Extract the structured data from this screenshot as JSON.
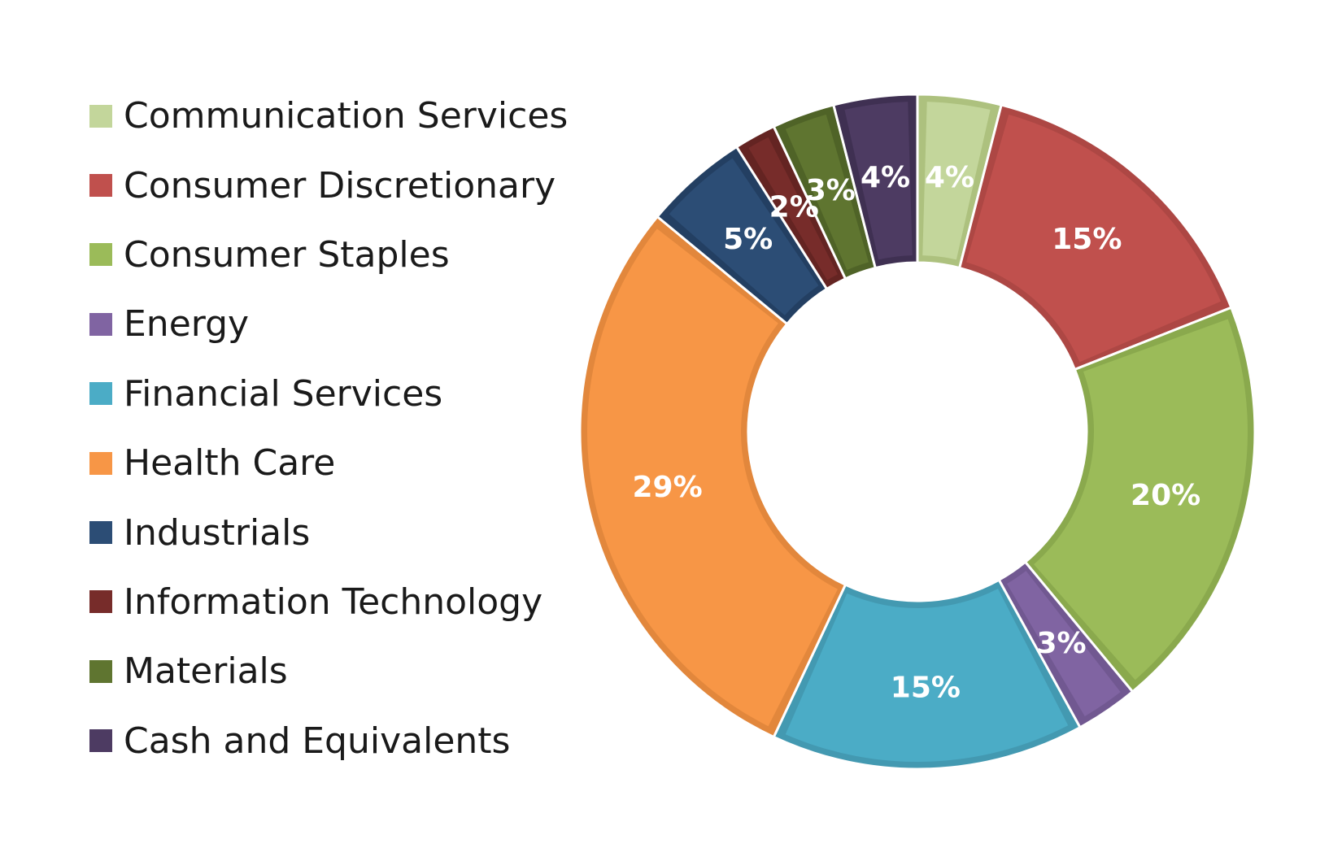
{
  "chart_data": {
    "type": "pie",
    "variant": "donut",
    "legend_position": "left",
    "categories": [
      "Communication Services",
      "Consumer Discretionary",
      "Consumer Staples",
      "Energy",
      "Financial Services",
      "Health Care",
      "Industrials",
      "Information Technology",
      "Materials",
      "Cash and Equivalents"
    ],
    "values": [
      4,
      15,
      20,
      3,
      15,
      29,
      5,
      2,
      3,
      4
    ],
    "labels": [
      "4%",
      "15%",
      "20%",
      "3%",
      "15%",
      "29%",
      "5%",
      "2%",
      "3%",
      "4%"
    ],
    "colors": [
      "#c3d69b",
      "#c0504d",
      "#9bbb59",
      "#8064a2",
      "#4bacc6",
      "#f79646",
      "#2c4d75",
      "#772c2a",
      "#5f7530",
      "#4d3b62"
    ],
    "border_colors": [
      "#adc17e",
      "#ad4744",
      "#8aa94d",
      "#715891",
      "#4399b1",
      "#e2873c",
      "#233f62",
      "#642422",
      "#4f6327",
      "#3f3052"
    ]
  }
}
